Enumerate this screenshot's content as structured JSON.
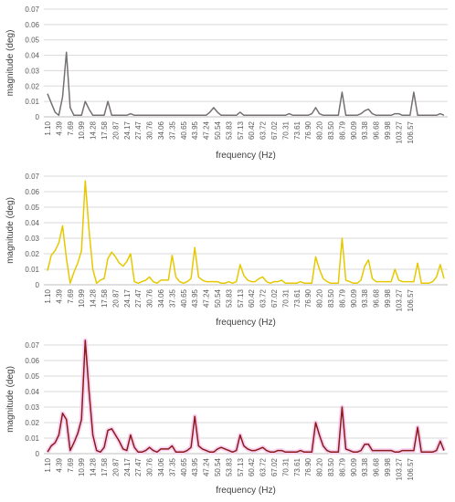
{
  "chart_data": [
    {
      "type": "line",
      "xlabel": "frequency (Hz)",
      "ylabel": "magnitude (deg)",
      "ylim": [
        0,
        0.07
      ],
      "yticks": [
        "0",
        "0.01",
        "0.02",
        "0.03",
        "0.04",
        "0.05",
        "0.06",
        "0.07"
      ],
      "grid": true,
      "tick_labels": [
        "1.10",
        "4.39",
        "7.69",
        "10.99",
        "14.28",
        "17.58",
        "20.87",
        "24.17",
        "27.47",
        "30.76",
        "34.06",
        "37.35",
        "40.65",
        "43.95",
        "47.24",
        "50.54",
        "53.83",
        "57.13",
        "60.42",
        "63.72",
        "67.02",
        "70.31",
        "73.61",
        "76.90",
        "80.20",
        "83.50",
        "86.79",
        "90.09",
        "93.38",
        "96.68",
        "99.98",
        "103.27",
        "106.57"
      ],
      "series": [
        {
          "color": "#767171",
          "highlight": "",
          "values": [
            0.015,
            0.009,
            0.003,
            0.001,
            0.013,
            0.042,
            0.006,
            0.001,
            0.001,
            0.001,
            0.01,
            0.005,
            0.001,
            0.001,
            0.001,
            0.001,
            0.01,
            0.001,
            0.001,
            0.001,
            0.001,
            0.001,
            0.002,
            0.001,
            0.001,
            0.001,
            0.001,
            0.001,
            0.001,
            0.001,
            0.001,
            0.001,
            0.001,
            0.001,
            0.001,
            0.001,
            0.001,
            0.001,
            0.001,
            0.001,
            0.001,
            0.001,
            0.001,
            0.003,
            0.006,
            0.003,
            0.001,
            0.001,
            0.001,
            0.001,
            0.001,
            0.003,
            0.001,
            0.001,
            0.001,
            0.001,
            0.001,
            0.001,
            0.001,
            0.001,
            0.001,
            0.001,
            0.001,
            0.001,
            0.002,
            0.001,
            0.001,
            0.001,
            0.001,
            0.001,
            0.002,
            0.006,
            0.002,
            0.001,
            0.001,
            0.001,
            0.001,
            0.001,
            0.016,
            0.001,
            0.001,
            0.001,
            0.001,
            0.002,
            0.004,
            0.005,
            0.002,
            0.001,
            0.001,
            0.001,
            0.001,
            0.001,
            0.002,
            0.002,
            0.001,
            0.001,
            0.001,
            0.016,
            0.001,
            0.001,
            0.001,
            0.001,
            0.001,
            0.001,
            0.002,
            0.001
          ]
        }
      ]
    },
    {
      "type": "line",
      "xlabel": "frequency (Hz)",
      "ylabel": "magnitude (deg)",
      "ylim": [
        0,
        0.07
      ],
      "yticks": [
        "0",
        "0.01",
        "0.02",
        "0.03",
        "0.04",
        "0.05",
        "0.06",
        "0.07"
      ],
      "grid": true,
      "tick_labels": [
        "1.10",
        "4.39",
        "7.69",
        "10.99",
        "14.28",
        "17.58",
        "20.87",
        "24.17",
        "27.47",
        "30.76",
        "34.06",
        "37.35",
        "40.65",
        "43.95",
        "47.24",
        "50.54",
        "53.83",
        "57.13",
        "60.42",
        "63.72",
        "67.02",
        "70.31",
        "73.61",
        "76.90",
        "80.20",
        "83.50",
        "86.79",
        "90.09",
        "93.38",
        "96.68",
        "99.98",
        "103.27",
        "106.57"
      ],
      "series": [
        {
          "color": "#e6c800",
          "highlight": "",
          "values": [
            0.009,
            0.019,
            0.022,
            0.027,
            0.038,
            0.017,
            0.001,
            0.008,
            0.014,
            0.022,
            0.067,
            0.035,
            0.01,
            0.001,
            0.003,
            0.004,
            0.017,
            0.021,
            0.018,
            0.014,
            0.012,
            0.015,
            0.02,
            0.002,
            0.001,
            0.002,
            0.003,
            0.005,
            0.002,
            0.001,
            0.003,
            0.003,
            0.003,
            0.019,
            0.005,
            0.002,
            0.001,
            0.002,
            0.004,
            0.024,
            0.005,
            0.003,
            0.002,
            0.002,
            0.002,
            0.002,
            0.001,
            0.001,
            0.002,
            0.001,
            0.002,
            0.013,
            0.006,
            0.003,
            0.002,
            0.002,
            0.004,
            0.005,
            0.002,
            0.001,
            0.002,
            0.002,
            0.003,
            0.001,
            0.001,
            0.001,
            0.001,
            0.002,
            0.001,
            0.001,
            0.001,
            0.018,
            0.01,
            0.004,
            0.002,
            0.001,
            0.001,
            0.001,
            0.03,
            0.003,
            0.002,
            0.001,
            0.001,
            0.003,
            0.012,
            0.016,
            0.004,
            0.002,
            0.002,
            0.002,
            0.002,
            0.002,
            0.01,
            0.003,
            0.002,
            0.002,
            0.002,
            0.002,
            0.014,
            0.001,
            0.001,
            0.001,
            0.002,
            0.005,
            0.013,
            0.004
          ]
        }
      ]
    },
    {
      "type": "line",
      "xlabel": "frequency (Hz)",
      "ylabel": "magnitude (deg)",
      "ylim": [
        0,
        0.07
      ],
      "yticks": [
        "0",
        "0.01",
        "0.02",
        "0.03",
        "0.04",
        "0.05",
        "0.06",
        "0.07"
      ],
      "grid": true,
      "tick_labels": [
        "1.10",
        "4.39",
        "7.69",
        "10.99",
        "14.28",
        "17.58",
        "20.87",
        "24.17",
        "27.47",
        "30.76",
        "34.06",
        "37.35",
        "40.65",
        "43.95",
        "47.24",
        "50.54",
        "53.83",
        "57.13",
        "60.42",
        "63.72",
        "67.02",
        "70.31",
        "73.61",
        "76.90",
        "80.20",
        "83.50",
        "86.79",
        "90.09",
        "93.38",
        "96.68",
        "99.98",
        "103.27",
        "106.57"
      ],
      "series": [
        {
          "color": "#8b1a1a",
          "highlight": "#f6c4ec",
          "values": [
            0.001,
            0.005,
            0.007,
            0.012,
            0.026,
            0.022,
            0.002,
            0.007,
            0.013,
            0.022,
            0.073,
            0.04,
            0.012,
            0.002,
            0.001,
            0.004,
            0.015,
            0.016,
            0.012,
            0.008,
            0.003,
            0.002,
            0.012,
            0.004,
            0.001,
            0.001,
            0.002,
            0.004,
            0.002,
            0.001,
            0.003,
            0.003,
            0.003,
            0.005,
            0.001,
            0.001,
            0.001,
            0.002,
            0.004,
            0.024,
            0.005,
            0.003,
            0.002,
            0.001,
            0.001,
            0.003,
            0.004,
            0.003,
            0.002,
            0.001,
            0.002,
            0.012,
            0.005,
            0.003,
            0.002,
            0.002,
            0.003,
            0.004,
            0.002,
            0.001,
            0.001,
            0.002,
            0.002,
            0.001,
            0.001,
            0.001,
            0.001,
            0.002,
            0.001,
            0.001,
            0.001,
            0.02,
            0.012,
            0.005,
            0.002,
            0.001,
            0.001,
            0.001,
            0.03,
            0.003,
            0.002,
            0.001,
            0.001,
            0.002,
            0.006,
            0.006,
            0.002,
            0.002,
            0.002,
            0.002,
            0.002,
            0.002,
            0.001,
            0.001,
            0.002,
            0.002,
            0.002,
            0.002,
            0.017,
            0.001,
            0.001,
            0.001,
            0.001,
            0.002,
            0.008,
            0.002
          ]
        }
      ]
    }
  ]
}
